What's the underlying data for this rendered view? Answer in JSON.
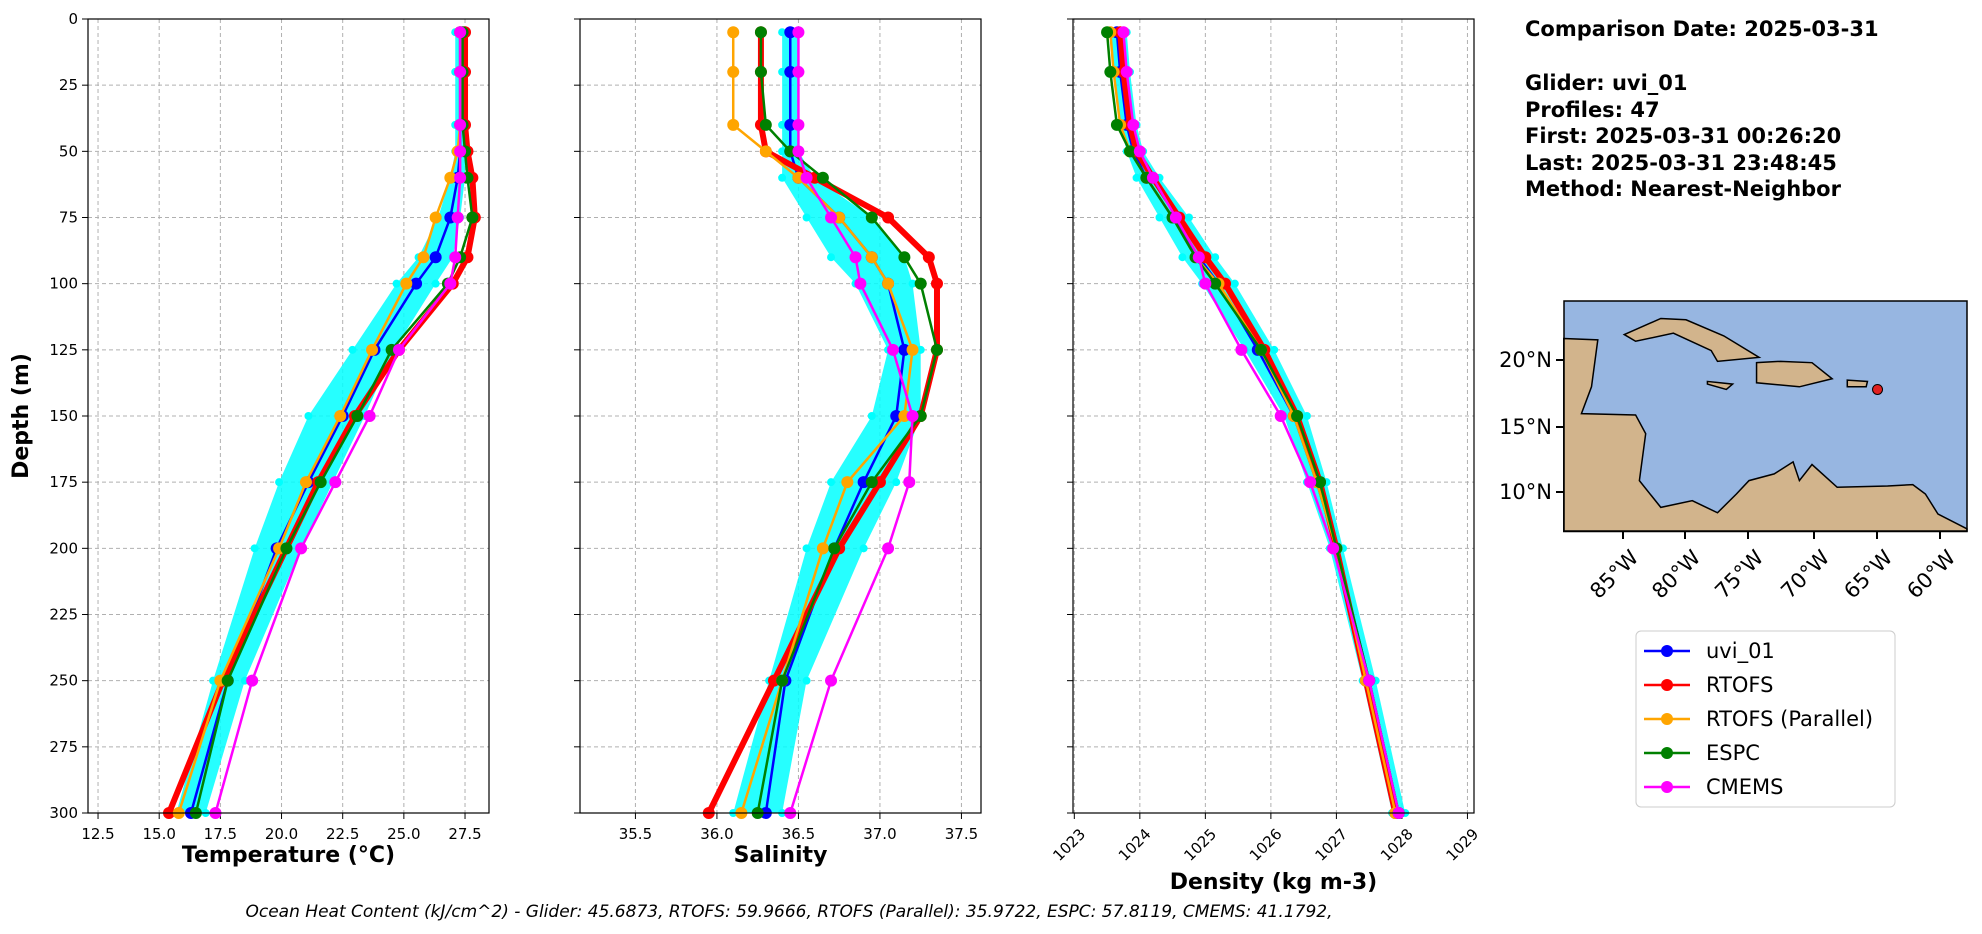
{
  "chart_data": [
    {
      "type": "line",
      "xlabel": "Temperature (°C)",
      "ylabel": "Depth (m)",
      "xlim": [
        12.09,
        28.48
      ],
      "xticks": [
        12.5,
        {
          "value": 15,
          "label": "15.0"
        },
        17.5,
        {
          "value": 20,
          "label": "20.0"
        },
        22.5,
        {
          "value": 25,
          "label": "25.0"
        },
        27.5
      ],
      "ylim": [
        300,
        0
      ],
      "yticks": [
        0,
        25,
        50,
        75,
        100,
        125,
        150,
        175,
        200,
        225,
        250,
        275,
        300
      ],
      "ytick_labels": true,
      "xtick_rotation": 0,
      "grid": true,
      "y": [
        5,
        20,
        40,
        50,
        60,
        75,
        90,
        100,
        125,
        150,
        175,
        200,
        250,
        300
      ],
      "band": {
        "color": "#00ffff",
        "lower": [
          27.1,
          27.1,
          27.1,
          27.1,
          26.9,
          26.4,
          25.6,
          24.7,
          22.9,
          21.1,
          19.9,
          18.9,
          17.2,
          15.7
        ],
        "upper": [
          27.5,
          27.5,
          27.5,
          27.5,
          27.5,
          27.3,
          27.0,
          26.3,
          24.6,
          23.4,
          22.1,
          20.8,
          18.5,
          16.9
        ]
      },
      "series": [
        {
          "name": "uvi_01",
          "color": "#0000ff",
          "values": [
            27.3,
            27.3,
            27.3,
            27.3,
            27.2,
            26.9,
            26.3,
            25.5,
            23.8,
            22.5,
            21.1,
            19.8,
            17.8,
            16.3
          ]
        },
        {
          "name": "RTOFS",
          "color": "#ff0000",
          "values": [
            27.5,
            27.5,
            27.5,
            27.6,
            27.8,
            27.9,
            27.6,
            27.0,
            24.8,
            23.0,
            21.5,
            20.2,
            17.6,
            15.4
          ]
        },
        {
          "name": "RTOFS (Parallel)",
          "color": "#ffa500",
          "values": [
            27.3,
            27.3,
            27.3,
            27.2,
            26.9,
            26.3,
            25.8,
            25.1,
            23.7,
            22.4,
            21.0,
            19.9,
            17.5,
            15.8
          ]
        },
        {
          "name": "ESPC",
          "color": "#008000",
          "values": [
            27.4,
            27.4,
            27.4,
            27.5,
            27.6,
            27.8,
            27.3,
            26.8,
            24.5,
            23.1,
            21.6,
            20.2,
            17.8,
            16.5
          ]
        },
        {
          "name": "CMEMS",
          "color": "#ff00ff",
          "values": [
            27.3,
            27.3,
            27.3,
            27.3,
            27.3,
            27.2,
            27.1,
            26.9,
            24.8,
            23.6,
            22.2,
            20.8,
            18.8,
            17.3
          ]
        }
      ]
    },
    {
      "type": "line",
      "xlabel": "Salinity",
      "xlim": [
        35.16,
        37.62
      ],
      "xticks": [
        35.5,
        {
          "value": 36,
          "label": "36.0"
        },
        36.5,
        {
          "value": 37,
          "label": "37.0"
        },
        37.5
      ],
      "ylim": [
        300,
        0
      ],
      "yticks": [
        0,
        25,
        50,
        75,
        100,
        125,
        150,
        175,
        200,
        225,
        250,
        275,
        300
      ],
      "ytick_labels": false,
      "xtick_rotation": 0,
      "grid": true,
      "y": [
        5,
        20,
        40,
        50,
        60,
        75,
        90,
        100,
        125,
        150,
        175,
        200,
        250,
        300
      ],
      "band": {
        "color": "#00ffff",
        "lower": [
          36.4,
          36.4,
          36.4,
          36.4,
          36.4,
          36.55,
          36.7,
          36.85,
          37.05,
          36.95,
          36.7,
          36.55,
          36.32,
          36.1
        ],
        "upper": [
          36.5,
          36.5,
          36.5,
          36.5,
          36.6,
          36.95,
          37.15,
          37.2,
          37.25,
          37.25,
          37.1,
          36.9,
          36.55,
          36.4
        ]
      },
      "series": [
        {
          "color": "#0000ff",
          "values": [
            36.45,
            36.45,
            36.45,
            36.45,
            36.5,
            36.75,
            36.95,
            37.05,
            37.15,
            37.1,
            36.9,
            36.72,
            36.42,
            36.3
          ]
        },
        {
          "color": "#ff0000",
          "values": [
            36.27,
            36.27,
            36.27,
            36.3,
            36.6,
            37.05,
            37.3,
            37.35,
            37.35,
            37.25,
            37.0,
            36.75,
            36.35,
            35.95
          ]
        },
        {
          "color": "#ffa500",
          "values": [
            36.1,
            36.1,
            36.1,
            36.3,
            36.5,
            36.75,
            36.95,
            37.05,
            37.2,
            37.15,
            36.8,
            36.65,
            36.4,
            36.15
          ]
        },
        {
          "color": "#008000",
          "values": [
            36.27,
            36.27,
            36.3,
            36.45,
            36.65,
            36.95,
            37.15,
            37.25,
            37.35,
            37.25,
            36.95,
            36.72,
            36.4,
            36.25
          ]
        },
        {
          "color": "#ff00ff",
          "values": [
            36.5,
            36.5,
            36.5,
            36.5,
            36.55,
            36.7,
            36.85,
            36.88,
            37.08,
            37.2,
            37.18,
            37.05,
            36.7,
            36.45
          ]
        }
      ]
    },
    {
      "type": "line",
      "xlabel": "Density (kg m-3)",
      "xlim": [
        1022.98,
        1029.1
      ],
      "xticks": [
        1023,
        1024,
        1025,
        1026,
        1027,
        1028,
        1029
      ],
      "ylim": [
        300,
        0
      ],
      "yticks": [
        0,
        25,
        50,
        75,
        100,
        125,
        150,
        175,
        200,
        225,
        250,
        275,
        300
      ],
      "ytick_labels": false,
      "xtick_rotation": 45,
      "grid": true,
      "y": [
        5,
        20,
        40,
        50,
        60,
        75,
        90,
        100,
        125,
        150,
        175,
        200,
        250,
        300
      ],
      "band": {
        "color": "#00ffff",
        "lower": [
          1023.55,
          1023.6,
          1023.7,
          1023.8,
          1023.95,
          1024.3,
          1024.65,
          1024.95,
          1025.6,
          1026.2,
          1026.55,
          1026.9,
          1027.4,
          1027.85
        ],
        "upper": [
          1023.8,
          1023.85,
          1023.95,
          1024.05,
          1024.3,
          1024.75,
          1025.15,
          1025.45,
          1026.05,
          1026.55,
          1026.85,
          1027.1,
          1027.6,
          1028.05
        ]
      },
      "series": [
        {
          "color": "#0000ff",
          "values": [
            1023.65,
            1023.7,
            1023.8,
            1023.9,
            1024.1,
            1024.5,
            1024.9,
            1025.2,
            1025.8,
            1026.35,
            1026.7,
            1027.0,
            1027.5,
            1027.95
          ]
        },
        {
          "color": "#ff0000",
          "values": [
            1023.7,
            1023.75,
            1023.85,
            1023.95,
            1024.2,
            1024.6,
            1025.0,
            1025.3,
            1025.9,
            1026.4,
            1026.75,
            1027.0,
            1027.45,
            1027.9
          ]
        },
        {
          "color": "#ffa500",
          "values": [
            1023.55,
            1023.6,
            1023.7,
            1023.85,
            1024.1,
            1024.5,
            1024.85,
            1025.2,
            1025.85,
            1026.35,
            1026.7,
            1027.0,
            1027.45,
            1027.9
          ]
        },
        {
          "color": "#008000",
          "values": [
            1023.5,
            1023.55,
            1023.65,
            1023.85,
            1024.1,
            1024.5,
            1024.85,
            1025.15,
            1025.85,
            1026.4,
            1026.75,
            1027.0,
            1027.5,
            1027.95
          ]
        },
        {
          "color": "#ff00ff",
          "values": [
            1023.75,
            1023.8,
            1023.9,
            1024.0,
            1024.2,
            1024.55,
            1024.9,
            1025.0,
            1025.55,
            1026.15,
            1026.6,
            1026.95,
            1027.5,
            1027.95
          ]
        }
      ]
    }
  ],
  "info": {
    "title": "Comparison Date: 2025-03-31",
    "lines": [
      "Glider: uvi_01",
      "Profiles: 47",
      "First: 2025-03-31 00:26:20",
      "Last: 2025-03-31 23:48:45",
      "Method: Nearest-Neighbor"
    ]
  },
  "map": {
    "lat_labels": [
      "20°N",
      "15°N",
      "10°N"
    ],
    "lon_labels": [
      "85°W",
      "80°W",
      "75°W",
      "70°W",
      "65°W",
      "60°W"
    ]
  },
  "footer": "Ocean Heat Content (kJ/cm^2) - Glider: 45.6873,  RTOFS: 59.9666,  RTOFS (Parallel): 35.9722,  ESPC: 57.8119,  CMEMS: 41.1792,"
}
